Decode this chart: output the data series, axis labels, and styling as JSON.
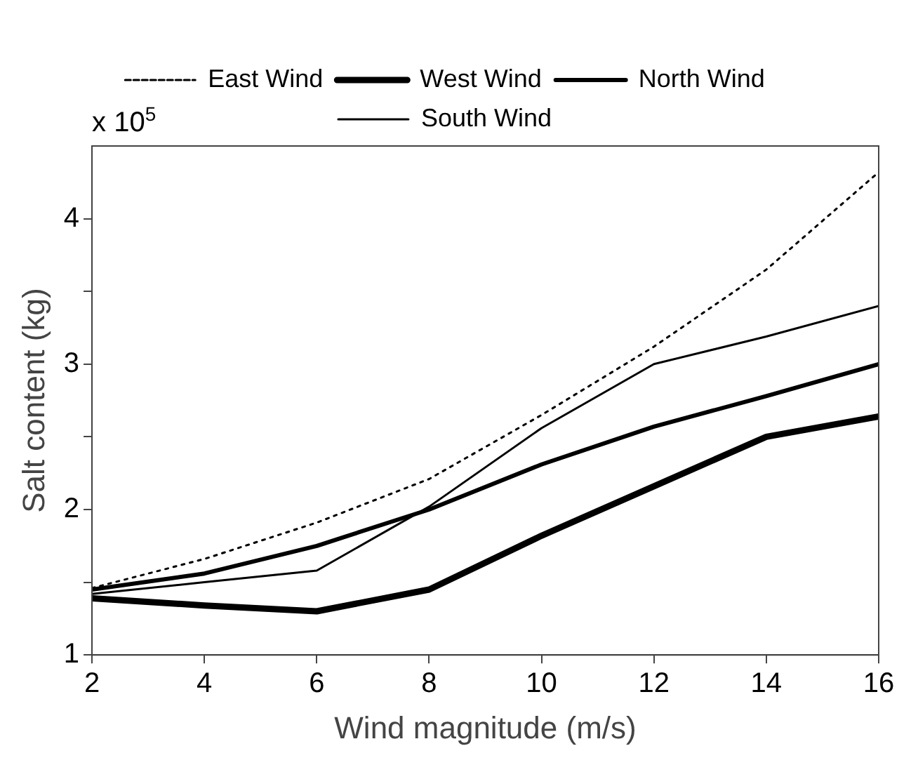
{
  "chart_data": {
    "type": "line",
    "xlabel": "Wind magnitude (m/s)",
    "ylabel": "Salt content (kg)",
    "annotations": [
      "x 10$^{5}$"
    ],
    "x": [
      2,
      4,
      6,
      8,
      10,
      12,
      14,
      16
    ],
    "series": [
      {
        "name": "East Wind",
        "color": "#000000",
        "line_style": "dotted",
        "values": [
          1.46,
          1.66,
          1.91,
          2.21,
          2.65,
          3.12,
          3.65,
          4.32
        ]
      },
      {
        "name": "West Wind",
        "color": "#000000",
        "line_style": "solid",
        "values": [
          1.39,
          1.34,
          1.3,
          1.45,
          1.82,
          2.16,
          2.5,
          2.64
        ]
      },
      {
        "name": "North Wind",
        "color": "#000000",
        "line_style": "solid",
        "values": [
          1.45,
          1.56,
          1.75,
          2.0,
          2.31,
          2.57,
          2.78,
          3.0
        ]
      },
      {
        "name": "South Wind",
        "color": "#000000",
        "line_style": "solid",
        "values": [
          1.42,
          1.5,
          1.58,
          2.02,
          2.56,
          3.0,
          3.19,
          3.4
        ]
      }
    ],
    "xlim": [
      2,
      16
    ],
    "xticks": [
      2,
      4,
      6,
      8,
      10,
      12,
      14,
      16
    ],
    "ylim": [
      1,
      4.5
    ],
    "yticks": [
      1,
      {
        "value": 1.5,
        "label": null
      },
      2,
      {
        "value": 2.5,
        "label": null
      },
      3,
      {
        "value": 3.5,
        "label": null
      },
      4
    ],
    "grid": false,
    "legend": "top",
    "marker": "none"
  }
}
